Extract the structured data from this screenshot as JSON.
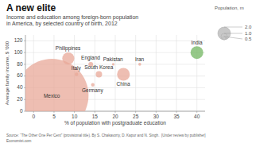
{
  "chart_data": {
    "type": "scatter",
    "title": "A new elite",
    "subtitle": "Income and education among foreign-born population\nin America, by selected country of birth, 2012",
    "xlabel": "% of population with postgraduate education",
    "ylabel": "Average family income, $ ’000",
    "source": "Source: “The Other One Per Cent” (provisional title). By S. Chakavorty, D. Kapur and N. Singh.  [Under review by publisher]\nEconomist.com",
    "labels": [
      "Mexico",
      "Philippines",
      "Italy",
      "England",
      "Pakistan",
      "South Korea",
      "Germany",
      "China",
      "Iran",
      "India"
    ],
    "x": [
      4.5,
      8.5,
      10.5,
      14,
      19.5,
      16,
      14.5,
      22,
      26,
      40
    ],
    "values": [
      27,
      90,
      63,
      80,
      80,
      63,
      45,
      63,
      80,
      100
    ],
    "sizes": [
      11.5,
      1.9,
      0.55,
      0.75,
      0.4,
      1.0,
      0.55,
      2.0,
      0.45,
      2.0
    ],
    "colors": [
      "#e8a898",
      "#e8a898",
      "#e8a898",
      "#e8a898",
      "#e8a898",
      "#e8a898",
      "#e8a898",
      "#e8a898",
      "#e8a898",
      "#72b560"
    ],
    "size_legend": {
      "title": "Population, m",
      "color": "#c8c8c8",
      "values": [
        {
          "value": 2.0,
          "label": "2.0"
        },
        {
          "value": 1.0,
          "label": "1.0"
        },
        {
          "value": 0.5,
          "label": "0.5"
        }
      ]
    },
    "xlim": [
      -2,
      42
    ],
    "ylim": [
      0,
      130
    ],
    "xticks": [
      0,
      5,
      10,
      15,
      20,
      25,
      30,
      35,
      40
    ],
    "yticks": [
      0,
      20,
      40,
      60,
      80,
      100,
      120
    ],
    "grid": true
  }
}
